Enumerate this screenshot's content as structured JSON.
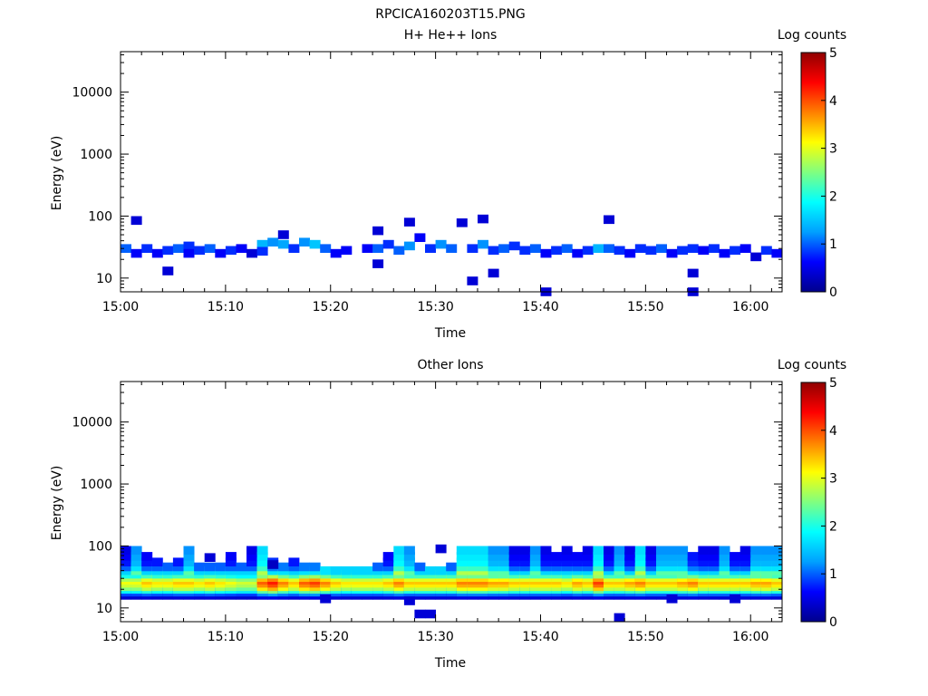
{
  "figure_title": "RPCICA160203T15.PNG",
  "colorbar": {
    "label": "Log counts",
    "ticks": [
      "0",
      "1",
      "2",
      "3",
      "4",
      "5"
    ],
    "stops": [
      "#00008c",
      "#0000ff",
      "#00a0ff",
      "#00ffff",
      "#80ff80",
      "#ffff00",
      "#ff8000",
      "#ff0000",
      "#900000"
    ]
  },
  "chart_data": [
    {
      "type": "heatmap",
      "title": "H+ He++ Ions",
      "xlabel": "Time",
      "ylabel": "Energy (eV)",
      "x_ticks": [
        "15:00",
        "15:10",
        "15:20",
        "15:30",
        "15:40",
        "15:50",
        "16:00"
      ],
      "y_ticks": [
        "10",
        "100",
        "1000",
        "10000"
      ],
      "y_scale": "log",
      "ylim": [
        6,
        45000
      ],
      "xlim": [
        "15:00",
        "16:03"
      ],
      "color_range": [
        0,
        5
      ],
      "cells": [
        {
          "t": "15:00",
          "e": 30,
          "v": 1.0
        },
        {
          "t": "15:01",
          "e": 25,
          "v": 0.6
        },
        {
          "t": "15:01",
          "e": 85,
          "v": 0.4
        },
        {
          "t": "15:02",
          "e": 30,
          "v": 0.8
        },
        {
          "t": "15:03",
          "e": 25,
          "v": 0.6
        },
        {
          "t": "15:04",
          "e": 13,
          "v": 0.4
        },
        {
          "t": "15:04",
          "e": 28,
          "v": 0.8
        },
        {
          "t": "15:05",
          "e": 30,
          "v": 1.0
        },
        {
          "t": "15:06",
          "e": 33,
          "v": 0.8
        },
        {
          "t": "15:06",
          "e": 25,
          "v": 0.6
        },
        {
          "t": "15:07",
          "e": 28,
          "v": 0.8
        },
        {
          "t": "15:08",
          "e": 30,
          "v": 1.0
        },
        {
          "t": "15:09",
          "e": 25,
          "v": 0.6
        },
        {
          "t": "15:10",
          "e": 28,
          "v": 0.8
        },
        {
          "t": "15:11",
          "e": 30,
          "v": 0.6
        },
        {
          "t": "15:12",
          "e": 25,
          "v": 0.4
        },
        {
          "t": "15:13",
          "e": 35,
          "v": 1.4
        },
        {
          "t": "15:13",
          "e": 27,
          "v": 0.8
        },
        {
          "t": "15:14",
          "e": 38,
          "v": 1.2
        },
        {
          "t": "15:15",
          "e": 35,
          "v": 1.3
        },
        {
          "t": "15:15",
          "e": 50,
          "v": 0.4
        },
        {
          "t": "15:16",
          "e": 30,
          "v": 0.8
        },
        {
          "t": "15:17",
          "e": 38,
          "v": 1.2
        },
        {
          "t": "15:18",
          "e": 35,
          "v": 1.5
        },
        {
          "t": "15:19",
          "e": 30,
          "v": 1.0
        },
        {
          "t": "15:20",
          "e": 25,
          "v": 0.6
        },
        {
          "t": "15:21",
          "e": 28,
          "v": 0.6
        },
        {
          "t": "15:23",
          "e": 30,
          "v": 0.6
        },
        {
          "t": "15:24",
          "e": 30,
          "v": 1.0
        },
        {
          "t": "15:24",
          "e": 17,
          "v": 0.4
        },
        {
          "t": "15:24",
          "e": 58,
          "v": 0.4
        },
        {
          "t": "15:25",
          "e": 35,
          "v": 0.8
        },
        {
          "t": "15:26",
          "e": 28,
          "v": 1.0
        },
        {
          "t": "15:27",
          "e": 33,
          "v": 1.2
        },
        {
          "t": "15:27",
          "e": 80,
          "v": 0.4
        },
        {
          "t": "15:28",
          "e": 45,
          "v": 0.6
        },
        {
          "t": "15:29",
          "e": 30,
          "v": 0.8
        },
        {
          "t": "15:30",
          "e": 35,
          "v": 1.2
        },
        {
          "t": "15:31",
          "e": 30,
          "v": 1.0
        },
        {
          "t": "15:32",
          "e": 78,
          "v": 0.4
        },
        {
          "t": "15:33",
          "e": 30,
          "v": 0.8
        },
        {
          "t": "15:33",
          "e": 9,
          "v": 0.4
        },
        {
          "t": "15:34",
          "e": 35,
          "v": 1.2
        },
        {
          "t": "15:34",
          "e": 90,
          "v": 0.4
        },
        {
          "t": "15:35",
          "e": 28,
          "v": 0.8
        },
        {
          "t": "15:35",
          "e": 12,
          "v": 0.4
        },
        {
          "t": "15:36",
          "e": 30,
          "v": 1.0
        },
        {
          "t": "15:37",
          "e": 33,
          "v": 0.8
        },
        {
          "t": "15:38",
          "e": 28,
          "v": 0.8
        },
        {
          "t": "15:39",
          "e": 30,
          "v": 1.0
        },
        {
          "t": "15:40",
          "e": 25,
          "v": 0.6
        },
        {
          "t": "15:40",
          "e": 6,
          "v": 0.4
        },
        {
          "t": "15:41",
          "e": 28,
          "v": 0.8
        },
        {
          "t": "15:42",
          "e": 30,
          "v": 1.0
        },
        {
          "t": "15:43",
          "e": 25,
          "v": 0.6
        },
        {
          "t": "15:44",
          "e": 28,
          "v": 0.8
        },
        {
          "t": "15:45",
          "e": 30,
          "v": 1.4
        },
        {
          "t": "15:46",
          "e": 30,
          "v": 1.0
        },
        {
          "t": "15:46",
          "e": 88,
          "v": 0.4
        },
        {
          "t": "15:47",
          "e": 28,
          "v": 0.8
        },
        {
          "t": "15:48",
          "e": 25,
          "v": 0.6
        },
        {
          "t": "15:49",
          "e": 30,
          "v": 0.8
        },
        {
          "t": "15:50",
          "e": 28,
          "v": 0.8
        },
        {
          "t": "15:51",
          "e": 30,
          "v": 1.0
        },
        {
          "t": "15:52",
          "e": 25,
          "v": 0.6
        },
        {
          "t": "15:53",
          "e": 28,
          "v": 0.8
        },
        {
          "t": "15:54",
          "e": 30,
          "v": 0.8
        },
        {
          "t": "15:54",
          "e": 12,
          "v": 0.4
        },
        {
          "t": "15:54",
          "e": 6,
          "v": 0.4
        },
        {
          "t": "15:55",
          "e": 28,
          "v": 0.6
        },
        {
          "t": "15:56",
          "e": 30,
          "v": 0.8
        },
        {
          "t": "15:57",
          "e": 25,
          "v": 0.6
        },
        {
          "t": "15:58",
          "e": 28,
          "v": 0.8
        },
        {
          "t": "15:59",
          "e": 30,
          "v": 0.6
        },
        {
          "t": "16:00",
          "e": 22,
          "v": 0.4
        },
        {
          "t": "16:01",
          "e": 28,
          "v": 0.8
        },
        {
          "t": "16:02",
          "e": 25,
          "v": 0.6
        }
      ]
    },
    {
      "type": "heatmap",
      "title": "Other Ions",
      "xlabel": "Time",
      "ylabel": "Energy (eV)",
      "x_ticks": [
        "15:00",
        "15:10",
        "15:20",
        "15:30",
        "15:40",
        "15:50",
        "16:00"
      ],
      "y_ticks": [
        "10",
        "100",
        "1000",
        "10000"
      ],
      "y_scale": "log",
      "ylim": [
        6,
        45000
      ],
      "xlim": [
        "15:00",
        "16:03"
      ],
      "color_range": [
        0,
        5
      ],
      "profile": [
        {
          "e": 16,
          "v": 0.4
        },
        {
          "e": 18,
          "v": 1.0
        },
        {
          "e": 20,
          "v": 2.0
        },
        {
          "e": 22,
          "v": 2.8
        },
        {
          "e": 25,
          "v": 3.2
        },
        {
          "e": 28,
          "v": 3.4
        },
        {
          "e": 31,
          "v": 3.0
        },
        {
          "e": 35,
          "v": 2.2
        },
        {
          "e": 40,
          "v": 1.4
        },
        {
          "e": 46,
          "v": 0.8
        },
        {
          "e": 55,
          "v": 0.5
        },
        {
          "e": 68,
          "v": 0.4
        },
        {
          "e": 85,
          "v": 0.3
        }
      ],
      "columns": [
        {
          "t": "15:00",
          "g": 0.9,
          "top": 85
        },
        {
          "t": "15:01",
          "g": 0.9,
          "top": 90
        },
        {
          "t": "15:02",
          "g": 1.0,
          "top": 70
        },
        {
          "t": "15:03",
          "g": 0.95,
          "top": 55
        },
        {
          "t": "15:04",
          "g": 0.95,
          "top": 50
        },
        {
          "t": "15:05",
          "g": 1.0,
          "top": 55
        },
        {
          "t": "15:06",
          "g": 1.0,
          "top": 90
        },
        {
          "t": "15:07",
          "g": 0.95,
          "top": 50
        },
        {
          "t": "15:08",
          "g": 1.0,
          "top": 50
        },
        {
          "t": "15:09",
          "g": 0.95,
          "top": 50
        },
        {
          "t": "15:10",
          "g": 0.9,
          "top": 80
        },
        {
          "t": "15:11",
          "g": 0.85,
          "top": 50
        },
        {
          "t": "15:12",
          "g": 0.85,
          "top": 85
        },
        {
          "t": "15:13",
          "g": 1.15,
          "top": 95
        },
        {
          "t": "15:14",
          "g": 1.25,
          "top": 55
        },
        {
          "t": "15:15",
          "g": 1.1,
          "top": 50
        },
        {
          "t": "15:16",
          "g": 1.0,
          "top": 55
        },
        {
          "t": "15:17",
          "g": 1.15,
          "top": 50
        },
        {
          "t": "15:18",
          "g": 1.2,
          "top": 50
        },
        {
          "t": "15:19",
          "g": 1.1,
          "top": 45
        },
        {
          "t": "15:20",
          "g": 1.0,
          "top": 45
        },
        {
          "t": "15:21",
          "g": 0.95,
          "top": 45
        },
        {
          "t": "15:22",
          "g": 0.95,
          "top": 45
        },
        {
          "t": "15:23",
          "g": 0.95,
          "top": 45
        },
        {
          "t": "15:24",
          "g": 0.95,
          "top": 50
        },
        {
          "t": "15:25",
          "g": 1.0,
          "top": 80
        },
        {
          "t": "15:26",
          "g": 1.1,
          "top": 95
        },
        {
          "t": "15:27",
          "g": 1.0,
          "top": 95
        },
        {
          "t": "15:28",
          "g": 1.0,
          "top": 50
        },
        {
          "t": "15:29",
          "g": 1.0,
          "top": 45
        },
        {
          "t": "15:30",
          "g": 1.0,
          "top": 45
        },
        {
          "t": "15:31",
          "g": 1.0,
          "top": 50
        },
        {
          "t": "15:32",
          "g": 1.1,
          "top": 95
        },
        {
          "t": "15:33",
          "g": 1.1,
          "top": 95
        },
        {
          "t": "15:34",
          "g": 1.1,
          "top": 95
        },
        {
          "t": "15:35",
          "g": 1.05,
          "top": 95
        },
        {
          "t": "15:36",
          "g": 1.05,
          "top": 95
        },
        {
          "t": "15:37",
          "g": 1.0,
          "top": 85
        },
        {
          "t": "15:38",
          "g": 1.0,
          "top": 85
        },
        {
          "t": "15:39",
          "g": 1.0,
          "top": 95
        },
        {
          "t": "15:40",
          "g": 1.0,
          "top": 85
        },
        {
          "t": "15:41",
          "g": 1.0,
          "top": 80
        },
        {
          "t": "15:42",
          "g": 0.95,
          "top": 85
        },
        {
          "t": "15:43",
          "g": 1.05,
          "top": 80
        },
        {
          "t": "15:44",
          "g": 1.0,
          "top": 85
        },
        {
          "t": "15:45",
          "g": 1.2,
          "top": 95
        },
        {
          "t": "15:46",
          "g": 1.0,
          "top": 85
        },
        {
          "t": "15:47",
          "g": 1.0,
          "top": 90
        },
        {
          "t": "15:48",
          "g": 1.05,
          "top": 85
        },
        {
          "t": "15:49",
          "g": 1.1,
          "top": 90
        },
        {
          "t": "15:50",
          "g": 1.0,
          "top": 85
        },
        {
          "t": "15:51",
          "g": 1.0,
          "top": 90
        },
        {
          "t": "15:52",
          "g": 1.0,
          "top": 90
        },
        {
          "t": "15:53",
          "g": 1.05,
          "top": 90
        },
        {
          "t": "15:54",
          "g": 1.1,
          "top": 80
        },
        {
          "t": "15:55",
          "g": 1.0,
          "top": 85
        },
        {
          "t": "15:56",
          "g": 1.0,
          "top": 85
        },
        {
          "t": "15:57",
          "g": 1.0,
          "top": 90
        },
        {
          "t": "15:58",
          "g": 1.0,
          "top": 70
        },
        {
          "t": "15:59",
          "g": 1.0,
          "top": 85
        },
        {
          "t": "16:00",
          "g": 1.05,
          "top": 90
        },
        {
          "t": "16:01",
          "g": 1.05,
          "top": 95
        },
        {
          "t": "16:02",
          "g": 1.0,
          "top": 95
        }
      ],
      "extra_cells": [
        {
          "t": "15:08",
          "e": 65,
          "v": 0.4
        },
        {
          "t": "15:14",
          "e": 50,
          "v": 0.3
        },
        {
          "t": "15:19",
          "e": 14,
          "v": 0.4
        },
        {
          "t": "15:27",
          "e": 13,
          "v": 0.4
        },
        {
          "t": "15:28",
          "e": 8,
          "v": 0.4
        },
        {
          "t": "15:29",
          "e": 8,
          "v": 0.4
        },
        {
          "t": "15:30",
          "e": 90,
          "v": 0.4
        },
        {
          "t": "15:47",
          "e": 7,
          "v": 0.4
        },
        {
          "t": "15:52",
          "e": 14,
          "v": 0.4
        },
        {
          "t": "15:58",
          "e": 14,
          "v": 0.4
        }
      ]
    }
  ]
}
